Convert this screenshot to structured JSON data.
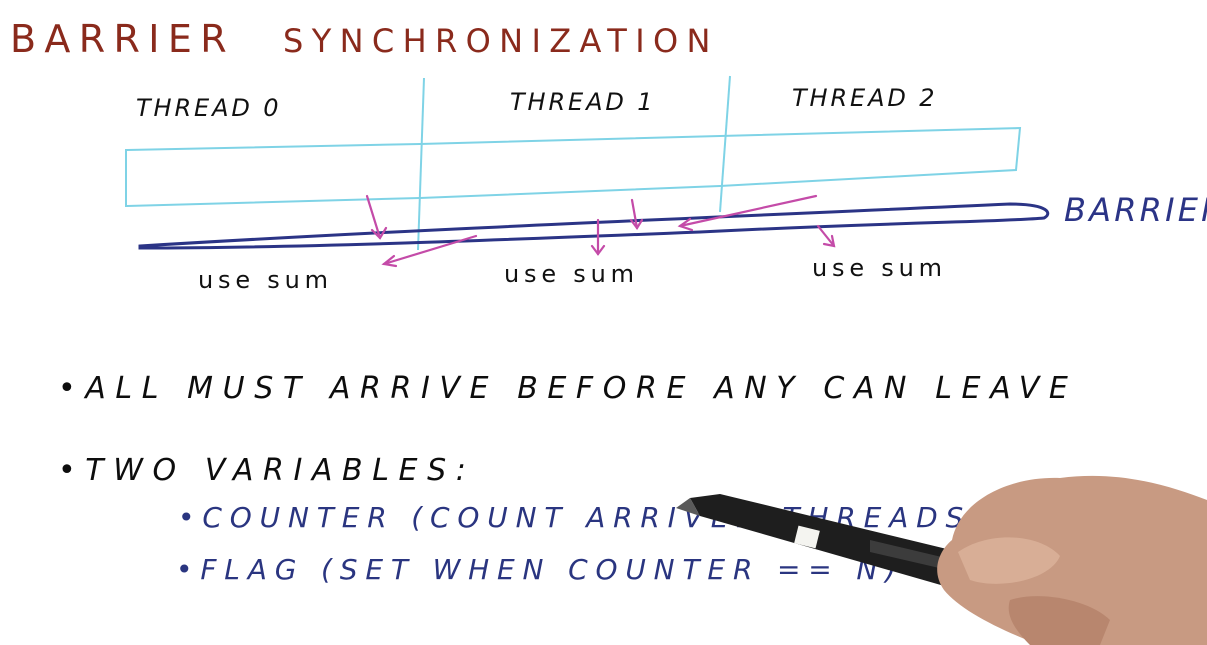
{
  "title": "BARRIER SYNCHRONIZATION",
  "title_parts": [
    "BARRIER",
    "SYNCHRONIZATION"
  ],
  "threads": [
    {
      "label": "THREAD 0"
    },
    {
      "label": "THREAD 1"
    },
    {
      "label": "THREAD 2"
    }
  ],
  "barrier_label": "BARRIER",
  "use_sum_labels": [
    "use sum",
    "use sum",
    "use sum"
  ],
  "bullets": [
    {
      "text": "•ALL MUST ARRIVE BEFORE ANY CAN LEAVE"
    },
    {
      "text": "•TWO VARIABLES:"
    }
  ],
  "sub_bullets": [
    {
      "text": "•COUNTER (COUNT ARRIVED THREADS)"
    },
    {
      "text": "•FLAG (SET WHEN COUNTER == N)"
    }
  ],
  "colors": {
    "title": "#8a2a1c",
    "thread_box": "#7fd3e6",
    "barrier": "#2b3486",
    "arrows": "#c44ba8",
    "text": "#111111",
    "sub_text": "#2a3580"
  }
}
